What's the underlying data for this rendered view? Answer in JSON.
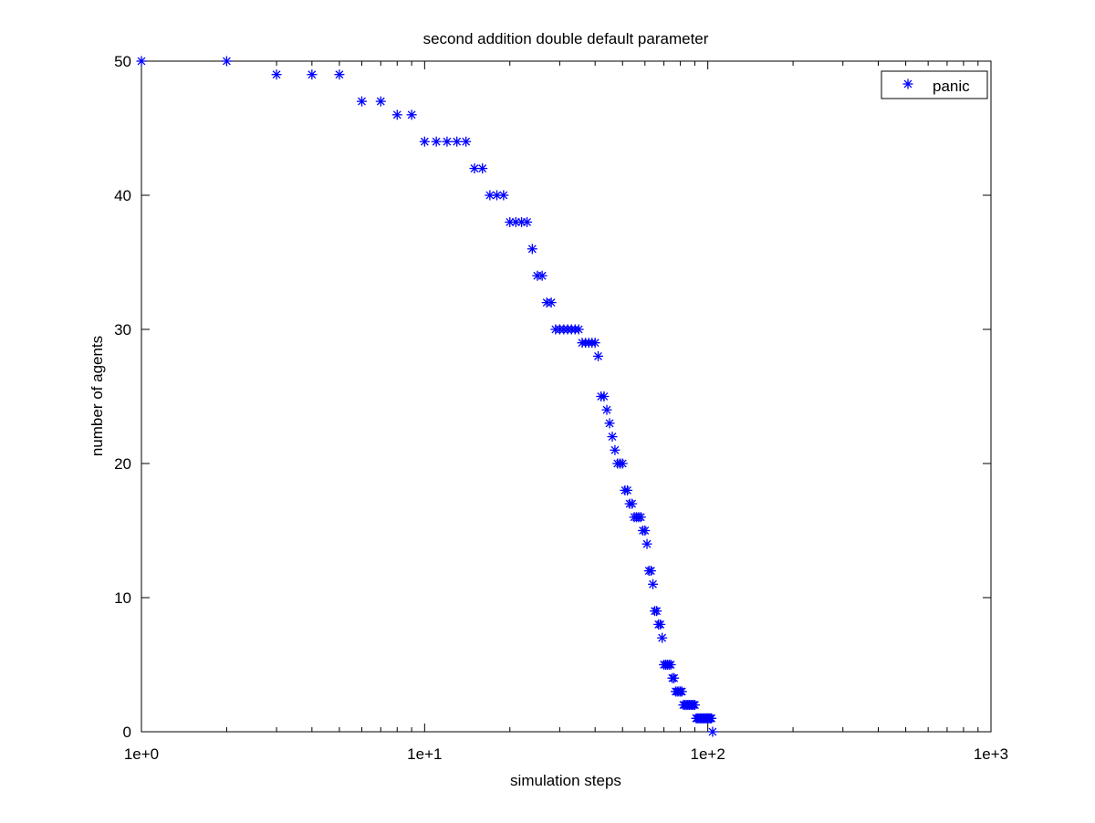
{
  "chart_data": {
    "type": "scatter",
    "title": "second addition double default parameter",
    "xlabel": "simulation steps",
    "ylabel": "number of agents",
    "xscale": "log",
    "xlim": [
      1,
      1000
    ],
    "ylim": [
      0,
      50
    ],
    "x_tick_labels": [
      "1e+0",
      "1e+1",
      "1e+2",
      "1e+3"
    ],
    "y_tick_labels": [
      "0",
      "10",
      "20",
      "30",
      "40",
      "50"
    ],
    "grid": false,
    "legend_position": "top-right",
    "marker": "asterisk",
    "color": "#0000ff",
    "series": [
      {
        "name": "panic",
        "points": [
          [
            1,
            50
          ],
          [
            2,
            50
          ],
          [
            3,
            49
          ],
          [
            4,
            49
          ],
          [
            5,
            49
          ],
          [
            6,
            47
          ],
          [
            7,
            47
          ],
          [
            8,
            46
          ],
          [
            9,
            46
          ],
          [
            10,
            44
          ],
          [
            11,
            44
          ],
          [
            12,
            44
          ],
          [
            13,
            44
          ],
          [
            14,
            44
          ],
          [
            15,
            42
          ],
          [
            16,
            42
          ],
          [
            17,
            40
          ],
          [
            18,
            40
          ],
          [
            19,
            40
          ],
          [
            20,
            38
          ],
          [
            21,
            38
          ],
          [
            22,
            38
          ],
          [
            23,
            38
          ],
          [
            24,
            36
          ],
          [
            25,
            34
          ],
          [
            26,
            34
          ],
          [
            27,
            32
          ],
          [
            28,
            32
          ],
          [
            29,
            30
          ],
          [
            30,
            30
          ],
          [
            31,
            30
          ],
          [
            32,
            30
          ],
          [
            33,
            30
          ],
          [
            34,
            30
          ],
          [
            35,
            30
          ],
          [
            36,
            29
          ],
          [
            37,
            29
          ],
          [
            38,
            29
          ],
          [
            39,
            29
          ],
          [
            40,
            29
          ],
          [
            41,
            28
          ],
          [
            42,
            25
          ],
          [
            43,
            25
          ],
          [
            44,
            24
          ],
          [
            45,
            23
          ],
          [
            46,
            22
          ],
          [
            47,
            21
          ],
          [
            48,
            20
          ],
          [
            49,
            20
          ],
          [
            50,
            20
          ],
          [
            51,
            18
          ],
          [
            52,
            18
          ],
          [
            53,
            17
          ],
          [
            54,
            17
          ],
          [
            55,
            16
          ],
          [
            56,
            16
          ],
          [
            57,
            16
          ],
          [
            58,
            16
          ],
          [
            59,
            15
          ],
          [
            60,
            15
          ],
          [
            61,
            14
          ],
          [
            62,
            12
          ],
          [
            63,
            12
          ],
          [
            64,
            11
          ],
          [
            65,
            9
          ],
          [
            66,
            9
          ],
          [
            67,
            8
          ],
          [
            68,
            8
          ],
          [
            69,
            7
          ],
          [
            70,
            5
          ],
          [
            71,
            5
          ],
          [
            72,
            5
          ],
          [
            73,
            5
          ],
          [
            74,
            5
          ],
          [
            75,
            4
          ],
          [
            76,
            4
          ],
          [
            77,
            3
          ],
          [
            78,
            3
          ],
          [
            79,
            3
          ],
          [
            80,
            3
          ],
          [
            81,
            3
          ],
          [
            82,
            2
          ],
          [
            83,
            2
          ],
          [
            84,
            2
          ],
          [
            85,
            2
          ],
          [
            86,
            2
          ],
          [
            87,
            2
          ],
          [
            88,
            2
          ],
          [
            89,
            2
          ],
          [
            90,
            2
          ],
          [
            91,
            1
          ],
          [
            92,
            1
          ],
          [
            93,
            1
          ],
          [
            94,
            1
          ],
          [
            95,
            1
          ],
          [
            96,
            1
          ],
          [
            97,
            1
          ],
          [
            98,
            1
          ],
          [
            99,
            1
          ],
          [
            100,
            1
          ],
          [
            101,
            1
          ],
          [
            102,
            1
          ],
          [
            103,
            1
          ],
          [
            104,
            0
          ]
        ]
      }
    ]
  }
}
